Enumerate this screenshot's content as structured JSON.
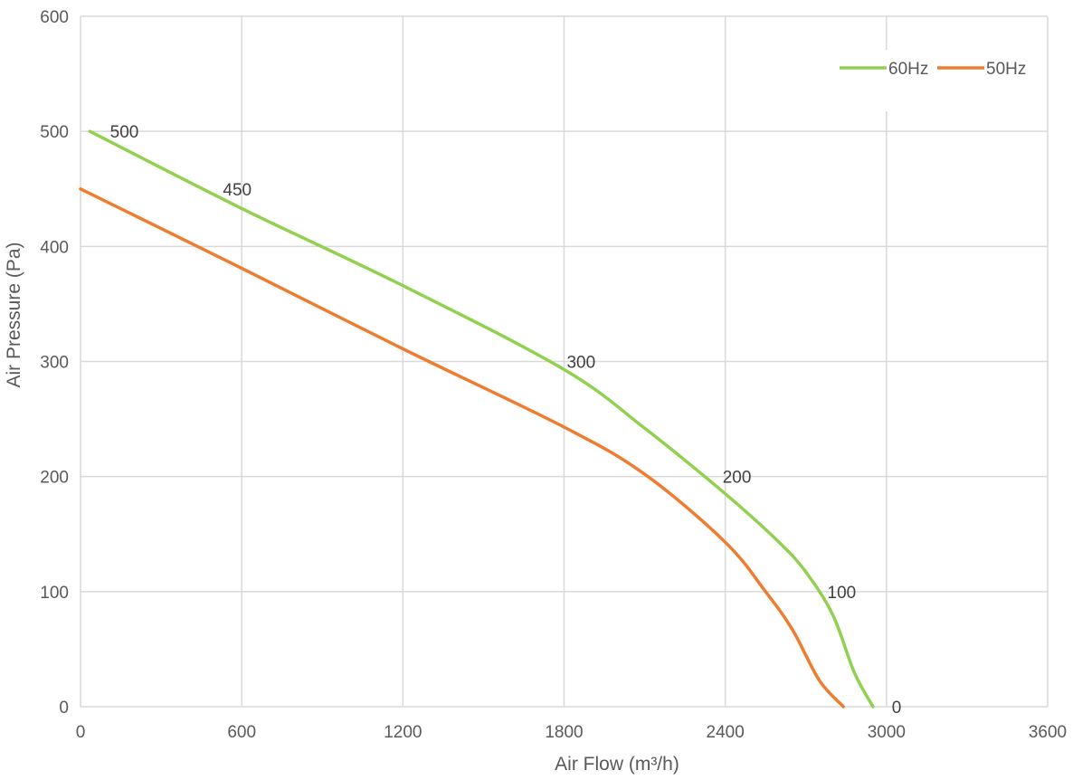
{
  "chart_data": {
    "type": "line",
    "title": "",
    "xlabel": "Air Flow  (m³/h)",
    "ylabel": "Air Pressure  (Pa)",
    "xlim": [
      0,
      3600
    ],
    "ylim": [
      0,
      600
    ],
    "x_ticks": [
      "0",
      "600",
      "1200",
      "1800",
      "2400",
      "3000",
      "3600"
    ],
    "y_ticks": [
      "0",
      "100",
      "200",
      "300",
      "400",
      "500",
      "600"
    ],
    "grid": true,
    "legend_position": "top-right",
    "series": [
      {
        "name": "60Hz",
        "color": "#92d050",
        "points": [
          [
            35,
            500
          ],
          [
            600,
            433
          ],
          [
            1200,
            366
          ],
          [
            1800,
            293
          ],
          [
            2100,
            242
          ],
          [
            2400,
            185
          ],
          [
            2600,
            143
          ],
          [
            2700,
            117
          ],
          [
            2800,
            80
          ],
          [
            2880,
            30
          ],
          [
            2950,
            0
          ]
        ]
      },
      {
        "name": "50Hz",
        "color": "#ed7d31",
        "points": [
          [
            0,
            450
          ],
          [
            600,
            381
          ],
          [
            1200,
            311
          ],
          [
            1800,
            243
          ],
          [
            2100,
            202
          ],
          [
            2400,
            143
          ],
          [
            2550,
            100
          ],
          [
            2650,
            67
          ],
          [
            2750,
            23
          ],
          [
            2840,
            0
          ]
        ]
      }
    ],
    "point_labels": [
      {
        "text": "500",
        "x": 110,
        "y": 500
      },
      {
        "text": "450",
        "x": 530,
        "y": 450
      },
      {
        "text": "300",
        "x": 1810,
        "y": 300
      },
      {
        "text": "200",
        "x": 2390,
        "y": 200
      },
      {
        "text": "100",
        "x": 2780,
        "y": 100
      },
      {
        "text": "0",
        "x": 3020,
        "y": 0
      }
    ]
  }
}
